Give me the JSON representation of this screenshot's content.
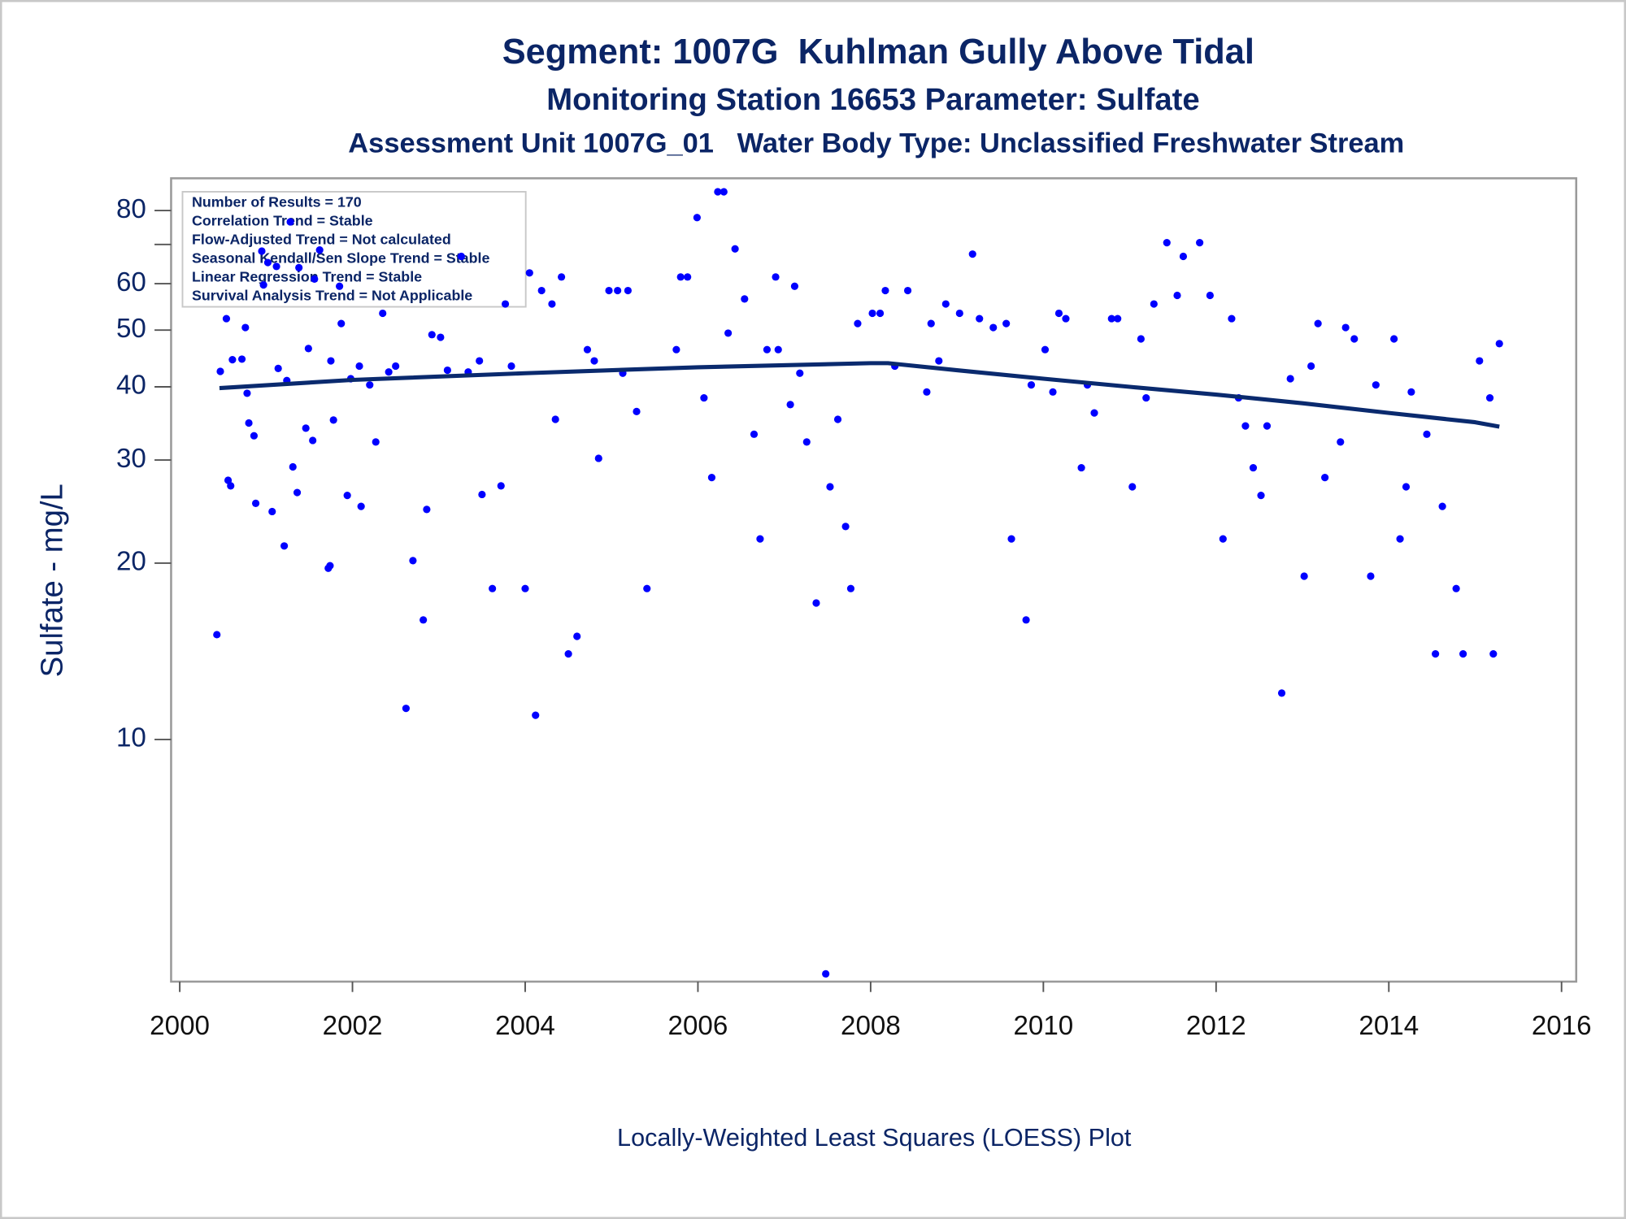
{
  "chart_data": {
    "type": "scatter",
    "title": "Segment: 1007G  Kuhlman Gully Above Tidal",
    "subtitles": [
      "Monitoring Station 16653 Parameter: Sulfate",
      "Assessment Unit 1007G_01   Water Body Type: Unclassified Freshwater Stream"
    ],
    "ylabel": "Sulfate - mg/L",
    "xlabel": "Locally-Weighted Least Squares (LOESS) Plot",
    "annotations": [
      "Number of Results = 170",
      "Correlation Trend = Stable",
      "Flow-Adjusted Trend = Not calculated",
      "Seasonal Kendall/Sen Slope Trend = Stable",
      "Linear Regression Trend = Stable",
      "Survival Analysis Trend = Not Applicable"
    ],
    "ylog": true,
    "ylim": [
      3.86,
      90.8
    ],
    "yticks": [
      10,
      20,
      30,
      40,
      50,
      60,
      80
    ],
    "yminorticks": [
      70
    ],
    "xlim": [
      1999.9,
      2016.17
    ],
    "xticks": [
      2000,
      2002,
      2004,
      2006,
      2008,
      2010,
      2012,
      2014,
      2016
    ],
    "color": "#0000ff",
    "x": [
      2000.43,
      2000.47,
      2000.54,
      2000.56,
      2000.59,
      2000.61,
      2000.72,
      2000.76,
      2000.78,
      2000.8,
      2000.86,
      2000.88,
      2000.95,
      2000.97,
      2001.02,
      2001.07,
      2001.12,
      2001.14,
      2001.21,
      2001.24,
      2001.28,
      2001.31,
      2001.36,
      2001.38,
      2001.46,
      2001.49,
      2001.54,
      2001.56,
      2001.62,
      2001.72,
      2001.74,
      2001.75,
      2001.78,
      2001.85,
      2001.87,
      2001.94,
      2001.98,
      2002.08,
      2002.1,
      2002.2,
      2002.27,
      2002.35,
      2002.42,
      2002.5,
      2002.62,
      2002.7,
      2002.82,
      2002.86,
      2002.92,
      2003.02,
      2003.1,
      2003.26,
      2003.34,
      2003.47,
      2003.5,
      2003.62,
      2003.72,
      2003.77,
      2003.84,
      2004.0,
      2004.05,
      2004.12,
      2004.19,
      2004.31,
      2004.35,
      2004.42,
      2004.5,
      2004.6,
      2004.72,
      2004.8,
      2004.85,
      2004.97,
      2005.07,
      2005.19,
      2005.13,
      2005.29,
      2005.41,
      2005.75,
      2005.8,
      2005.88,
      2005.99,
      2006.07,
      2006.16,
      2006.23,
      2006.3,
      2006.35,
      2006.43,
      2006.54,
      2006.65,
      2006.72,
      2006.8,
      2006.9,
      2006.93,
      2007.07,
      2007.12,
      2007.18,
      2007.26,
      2007.37,
      2007.48,
      2007.53,
      2007.62,
      2007.71,
      2007.77,
      2007.85,
      2008.02,
      2008.11,
      2008.17,
      2008.28,
      2008.43,
      2008.65,
      2008.7,
      2008.79,
      2008.87,
      2009.03,
      2009.18,
      2009.26,
      2009.42,
      2009.57,
      2009.63,
      2009.8,
      2009.86,
      2010.02,
      2010.11,
      2010.18,
      2010.26,
      2010.44,
      2010.51,
      2010.59,
      2010.79,
      2010.86,
      2011.03,
      2011.13,
      2011.19,
      2011.28,
      2011.43,
      2011.55,
      2011.62,
      2011.81,
      2011.93,
      2012.08,
      2012.18,
      2012.26,
      2012.34,
      2012.43,
      2012.52,
      2012.59,
      2012.76,
      2012.86,
      2013.02,
      2013.1,
      2013.18,
      2013.26,
      2013.44,
      2013.5,
      2013.6,
      2013.79,
      2013.85,
      2014.06,
      2014.13,
      2014.2,
      2014.26,
      2014.44,
      2014.54,
      2014.62,
      2014.78,
      2014.86,
      2015.05,
      2015.17,
      2015.21,
      2015.28
    ],
    "values": [
      15.1,
      42.5,
      52.3,
      27.7,
      27.1,
      44.5,
      44.6,
      50.5,
      39.0,
      34.7,
      33.0,
      25.3,
      68.2,
      59.7,
      65.2,
      24.5,
      64.2,
      43.0,
      21.4,
      41.0,
      76.5,
      29.2,
      26.4,
      63.9,
      34.0,
      46.5,
      32.4,
      61.1,
      68.5,
      19.6,
      19.8,
      44.3,
      35.1,
      59.4,
      51.3,
      26.1,
      41.3,
      43.4,
      25.0,
      40.3,
      32.2,
      53.4,
      42.4,
      43.4,
      11.3,
      20.2,
      16.0,
      24.7,
      49.1,
      48.6,
      42.7,
      66.8,
      42.4,
      44.3,
      26.2,
      18.1,
      27.1,
      55.4,
      43.4,
      18.1,
      62.6,
      11.0,
      58.4,
      55.4,
      35.2,
      61.6,
      14.0,
      15.0,
      46.3,
      44.3,
      30.2,
      58.4,
      58.4,
      58.4,
      42.2,
      36.3,
      18.1,
      46.3,
      61.6,
      61.6,
      77.8,
      38.3,
      28.0,
      86.1,
      86.1,
      49.4,
      68.8,
      56.5,
      33.2,
      22.0,
      46.3,
      61.6,
      46.3,
      37.3,
      59.4,
      42.2,
      32.2,
      17.1,
      3.98,
      27.0,
      35.2,
      23.1,
      18.1,
      51.3,
      53.4,
      53.4,
      58.4,
      43.4,
      58.4,
      39.2,
      51.3,
      44.3,
      55.4,
      53.4,
      67.4,
      52.3,
      50.5,
      51.3,
      22.0,
      16.0,
      40.3,
      46.3,
      39.2,
      53.4,
      52.3,
      29.1,
      40.3,
      36.1,
      52.3,
      52.3,
      27.0,
      48.3,
      38.3,
      55.4,
      70.5,
      57.3,
      66.8,
      70.5,
      57.3,
      22.0,
      52.3,
      38.3,
      34.3,
      29.1,
      26.1,
      34.3,
      12.0,
      41.3,
      19.0,
      43.4,
      51.3,
      28.0,
      32.2,
      50.5,
      48.3,
      19.0,
      40.3,
      48.3,
      22.0,
      27.0,
      39.2,
      33.2,
      14.0,
      25.0,
      18.1,
      14.0,
      44.3,
      38.3,
      14.0,
      47.4
    ],
    "fit_line": {
      "color": "#0a2a6e",
      "x": [
        2000.46,
        2002,
        2004,
        2006,
        2008,
        2008.2,
        2009,
        2010,
        2011,
        2012,
        2013,
        2014,
        2015,
        2015.28
      ],
      "values": [
        39.8,
        41.1,
        42.2,
        43.2,
        43.9,
        43.9,
        42.7,
        41.3,
        40.0,
        38.8,
        37.5,
        36.1,
        34.8,
        34.2
      ]
    }
  }
}
